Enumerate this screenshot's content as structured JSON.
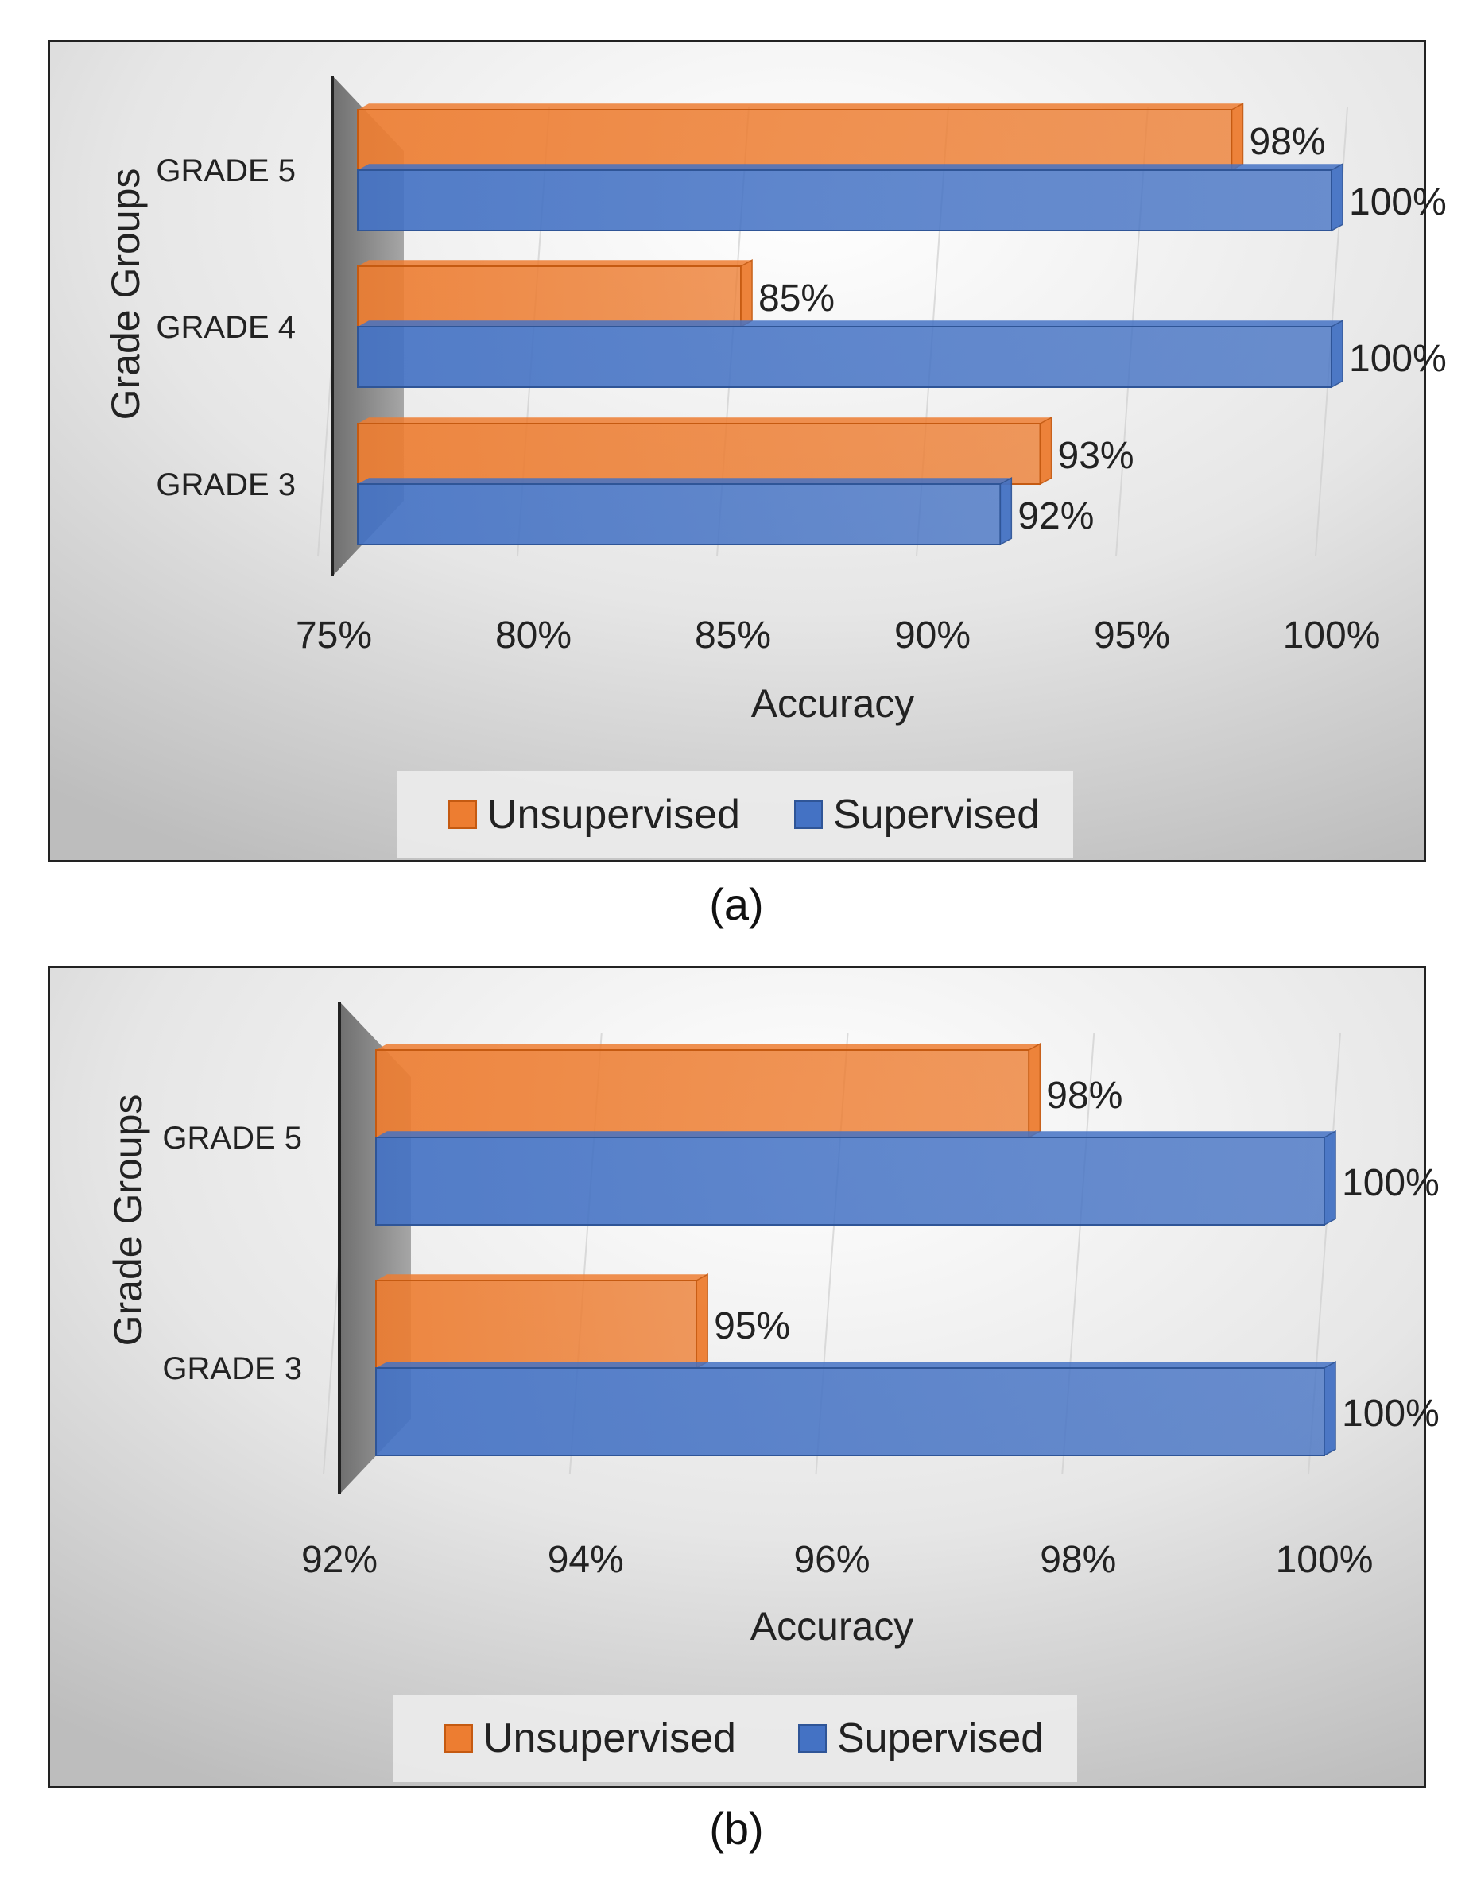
{
  "chart_data": [
    {
      "type": "bar",
      "orientation": "horizontal",
      "caption": "(a)",
      "categories": [
        "GRADE 5",
        "GRADE 4",
        "GRADE 3"
      ],
      "series": [
        {
          "name": "Unsupervised",
          "values": [
            97.5,
            85.2,
            92.7
          ],
          "labels": [
            "98%",
            "85%",
            "93%"
          ],
          "color": "#ED7D31"
        },
        {
          "name": "Supervised",
          "values": [
            100,
            100,
            91.7
          ],
          "labels": [
            "100%",
            "100%",
            "92%"
          ],
          "color": "#4472C4"
        }
      ],
      "xlabel": "Accuracy",
      "ylabel": "Grade Groups",
      "xlim": [
        75,
        100
      ],
      "ticks": [
        75,
        80,
        85,
        90,
        95,
        100
      ],
      "tick_labels": [
        "75%",
        "80%",
        "85%",
        "90%",
        "95%",
        "100%"
      ],
      "legend": [
        "Unsupervised",
        "Supervised"
      ],
      "legend_position": "bottom"
    },
    {
      "type": "bar",
      "orientation": "horizontal",
      "caption": "(b)",
      "categories": [
        "GRADE 5",
        "GRADE 3"
      ],
      "series": [
        {
          "name": "Unsupervised",
          "values": [
            97.6,
            94.9
          ],
          "labels": [
            "98%",
            "95%"
          ],
          "color": "#ED7D31"
        },
        {
          "name": "Supervised",
          "values": [
            100,
            100
          ],
          "labels": [
            "100%",
            "100%"
          ],
          "color": "#4472C4"
        }
      ],
      "xlabel": "Accuracy",
      "ylabel": "Grade Groups",
      "xlim": [
        92,
        100
      ],
      "ticks": [
        92,
        94,
        96,
        98,
        100
      ],
      "tick_labels": [
        "92%",
        "94%",
        "96%",
        "98%",
        "100%"
      ],
      "legend": [
        "Unsupervised",
        "Supervised"
      ],
      "legend_position": "bottom"
    }
  ]
}
